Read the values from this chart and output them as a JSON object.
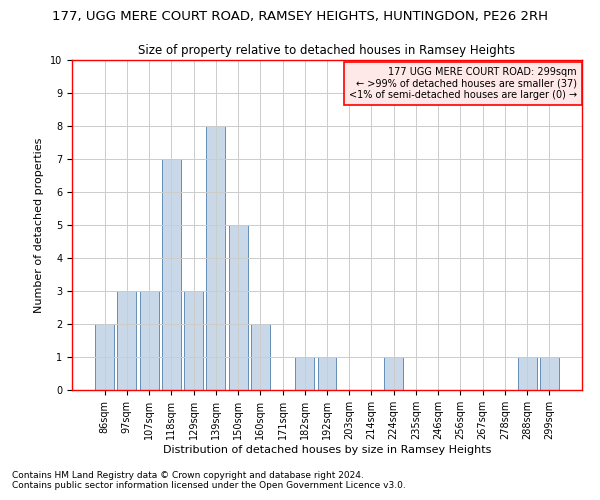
{
  "title": "177, UGG MERE COURT ROAD, RAMSEY HEIGHTS, HUNTINGDON, PE26 2RH",
  "subtitle": "Size of property relative to detached houses in Ramsey Heights",
  "xlabel": "Distribution of detached houses by size in Ramsey Heights",
  "ylabel": "Number of detached properties",
  "categories": [
    "86sqm",
    "97sqm",
    "107sqm",
    "118sqm",
    "129sqm",
    "139sqm",
    "150sqm",
    "160sqm",
    "171sqm",
    "182sqm",
    "192sqm",
    "203sqm",
    "214sqm",
    "224sqm",
    "235sqm",
    "246sqm",
    "256sqm",
    "267sqm",
    "278sqm",
    "288sqm",
    "299sqm"
  ],
  "values": [
    2,
    3,
    3,
    7,
    3,
    8,
    5,
    2,
    0,
    1,
    1,
    0,
    0,
    1,
    0,
    0,
    0,
    0,
    0,
    1,
    1
  ],
  "bar_color": "#c8d8e8",
  "bar_edge_color": "#5080b0",
  "annotation_box_text": "177 UGG MERE COURT ROAD: 299sqm\n← >99% of detached houses are smaller (37)\n<1% of semi-detached houses are larger (0) →",
  "annotation_box_color": "#ffe8e8",
  "annotation_box_edge_color": "red",
  "ylim": [
    0,
    10
  ],
  "yticks": [
    0,
    1,
    2,
    3,
    4,
    5,
    6,
    7,
    8,
    9,
    10
  ],
  "grid_color": "#cccccc",
  "footnote1": "Contains HM Land Registry data © Crown copyright and database right 2024.",
  "footnote2": "Contains public sector information licensed under the Open Government Licence v3.0.",
  "background_color": "#ffffff",
  "title_fontsize": 9.5,
  "subtitle_fontsize": 8.5,
  "axis_label_fontsize": 8,
  "tick_fontsize": 7,
  "annotation_fontsize": 7,
  "footnote_fontsize": 6.5,
  "spine_color": "red",
  "spine_linewidth": 1.0
}
